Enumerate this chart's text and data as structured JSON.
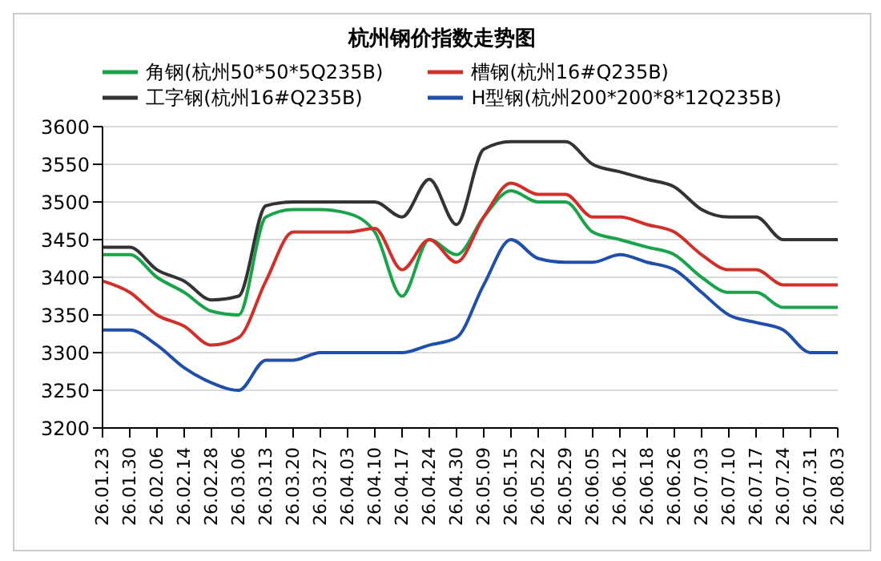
{
  "chart_data": {
    "type": "line",
    "title": "杭州钢价指数走势图",
    "categories": [
      "26.01.23",
      "26.01.30",
      "26.02.06",
      "26.02.14",
      "26.02.28",
      "26.03.06",
      "26.03.13",
      "26.03.20",
      "26.03.27",
      "26.04.03",
      "26.04.10",
      "26.04.17",
      "26.04.24",
      "26.04.30",
      "26.05.09",
      "26.05.15",
      "26.05.22",
      "26.05.29",
      "26.06.05",
      "26.06.12",
      "26.06.18",
      "26.06.26",
      "26.07.03",
      "26.07.10",
      "26.07.17",
      "26.07.24",
      "26.07.31",
      "26.08.03"
    ],
    "series": [
      {
        "name": "角钢(杭州50*50*5Q235B)",
        "color": "#1aa34a",
        "values": [
          3430,
          3430,
          3400,
          3380,
          3355,
          3350,
          3480,
          3490,
          3490,
          3485,
          3460,
          3375,
          3450,
          3430,
          3480,
          3515,
          3500,
          3500,
          3460,
          3450,
          3440,
          3430,
          3400,
          3380,
          3380,
          3360,
          3360,
          3360
        ]
      },
      {
        "name": "槽钢(杭州16#Q235B)",
        "color": "#d0302a",
        "values": [
          3395,
          3380,
          3350,
          3335,
          3310,
          3320,
          3395,
          3460,
          3460,
          3460,
          3465,
          3410,
          3450,
          3420,
          3480,
          3525,
          3510,
          3510,
          3480,
          3480,
          3470,
          3460,
          3430,
          3410,
          3410,
          3390,
          3390,
          3390
        ]
      },
      {
        "name": "工字钢(杭州16#Q235B)",
        "color": "#333333",
        "values": [
          3440,
          3440,
          3410,
          3395,
          3370,
          3375,
          3495,
          3500,
          3500,
          3500,
          3500,
          3480,
          3530,
          3470,
          3570,
          3580,
          3580,
          3580,
          3550,
          3540,
          3530,
          3520,
          3490,
          3480,
          3480,
          3450,
          3450,
          3450
        ]
      },
      {
        "name": "H型钢(杭州200*200*8*12Q235B)",
        "color": "#1f4fa8",
        "values": [
          3330,
          3330,
          3310,
          3280,
          3260,
          3250,
          3290,
          3290,
          3300,
          3300,
          3300,
          3300,
          3310,
          3320,
          3390,
          3450,
          3425,
          3420,
          3420,
          3430,
          3420,
          3410,
          3380,
          3350,
          3340,
          3330,
          3300,
          3300
        ]
      }
    ],
    "ylim": [
      3200,
      3600
    ],
    "yticks": [
      3200,
      3250,
      3300,
      3350,
      3400,
      3450,
      3500,
      3550,
      3600
    ],
    "grid": "y",
    "legend": "top",
    "marker": "none",
    "line_style": "solid"
  }
}
